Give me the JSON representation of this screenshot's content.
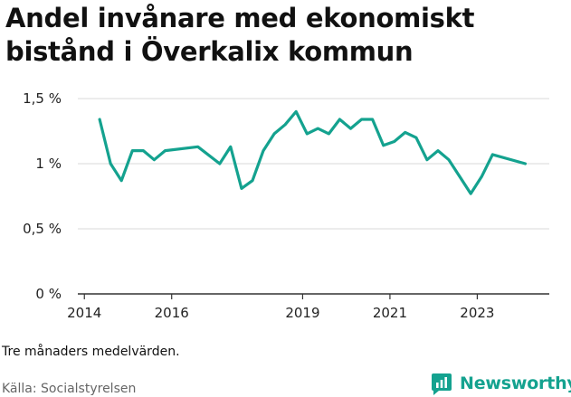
{
  "title": "Andel invånare med ekonomiskt bistånd i Överkalix kommun",
  "note": "Tre månaders medelvärden.",
  "source": "Källa: Socialstyrelsen",
  "brand": "Newsworthy",
  "colors": {
    "line": "#14a28f",
    "grid": "#d9d9d9",
    "axis": "#333333",
    "brand": "#14a28f"
  },
  "chart_data": {
    "type": "line",
    "ylim": [
      0,
      1.5
    ],
    "xlim": [
      2013.85,
      2024.65
    ],
    "yticks": [
      0,
      0.5,
      1,
      1.5
    ],
    "ytick_labels": [
      "0 %",
      "0,5 %",
      "1 %",
      "1,5 %"
    ],
    "xticks": [
      2014,
      2016,
      2019,
      2021,
      2023
    ],
    "xtick_labels": [
      "2014",
      "2016",
      "2019",
      "2021",
      "2023"
    ],
    "grid": true,
    "series": [
      {
        "x": [
          2014.35,
          2014.6,
          2014.85,
          2015.1,
          2015.35,
          2015.6,
          2015.85,
          2016.6,
          2017.1,
          2017.35,
          2017.6,
          2017.85,
          2018.1,
          2018.35,
          2018.6,
          2018.85,
          2019.1,
          2019.35,
          2019.6,
          2019.85,
          2020.1,
          2020.35,
          2020.6,
          2020.85,
          2021.1,
          2021.35,
          2021.6,
          2021.85,
          2022.1,
          2022.35,
          2022.85,
          2023.1,
          2023.35,
          2024.1
        ],
        "y": [
          1.34,
          1.0,
          0.87,
          1.1,
          1.1,
          1.03,
          1.1,
          1.13,
          1.0,
          1.13,
          0.81,
          0.87,
          1.1,
          1.23,
          1.3,
          1.4,
          1.23,
          1.27,
          1.23,
          1.34,
          1.27,
          1.34,
          1.34,
          1.14,
          1.17,
          1.24,
          1.2,
          1.03,
          1.1,
          1.03,
          0.77,
          0.9,
          1.07,
          1.0
        ]
      }
    ]
  }
}
